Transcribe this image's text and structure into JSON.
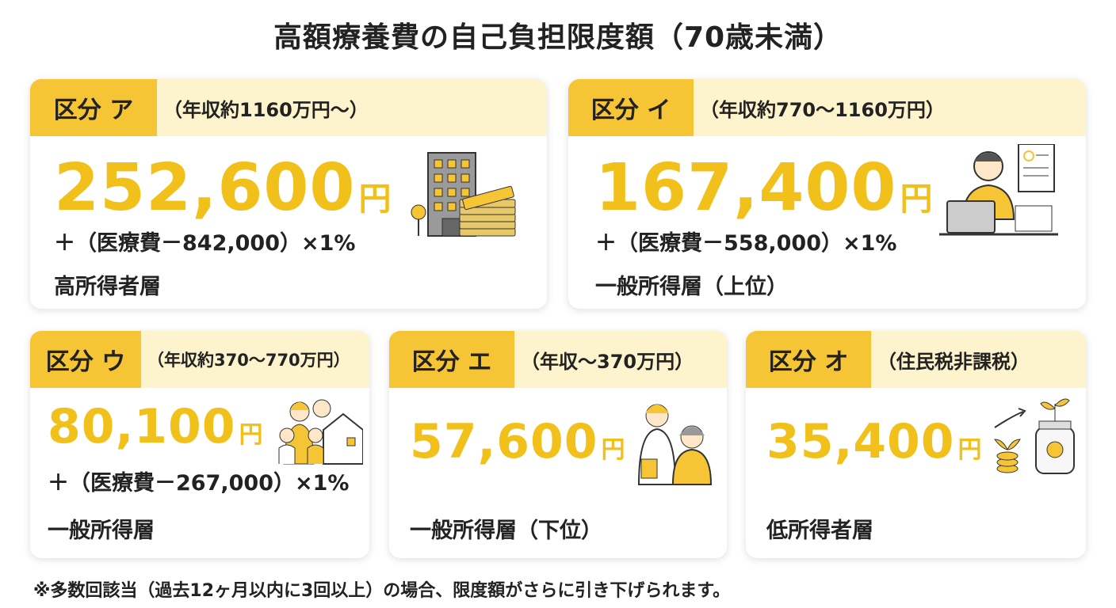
{
  "header": {
    "title": "高額療養費の自己負担限度額（70歳未満）"
  },
  "cards": [
    {
      "label": "区分 ア",
      "income": "（年収約1160万円～）",
      "amount": "252,600",
      "unit": "円",
      "formula": "＋（医療費－842,000）×1%",
      "group": "高所得者層"
    },
    {
      "label": "区分 イ",
      "income": "（年収約770～1160万円）",
      "amount": "167,400",
      "unit": "円",
      "formula": "＋（医療費－558,000）×1%",
      "group": "一般所得層（上位）"
    },
    {
      "label": "区分 ウ",
      "income": "（年収約370～770万円）",
      "amount": "80,100",
      "unit": "円",
      "formula": "＋（医療費－267,000）×1%",
      "group": "一般所得層"
    },
    {
      "label": "区分 エ",
      "income": "（年収～370万円）",
      "amount": "57,600",
      "unit": "円",
      "group": "一般所得層（下位）"
    },
    {
      "label": "区分 オ",
      "income": "（住民税非課税）",
      "amount": "35,400",
      "unit": "円",
      "group": "低所得者層"
    }
  ],
  "footnote": "※多数回該当（過去12ヶ月以内に3回以上）の場合、限度額がさらに引き下げられます。"
}
